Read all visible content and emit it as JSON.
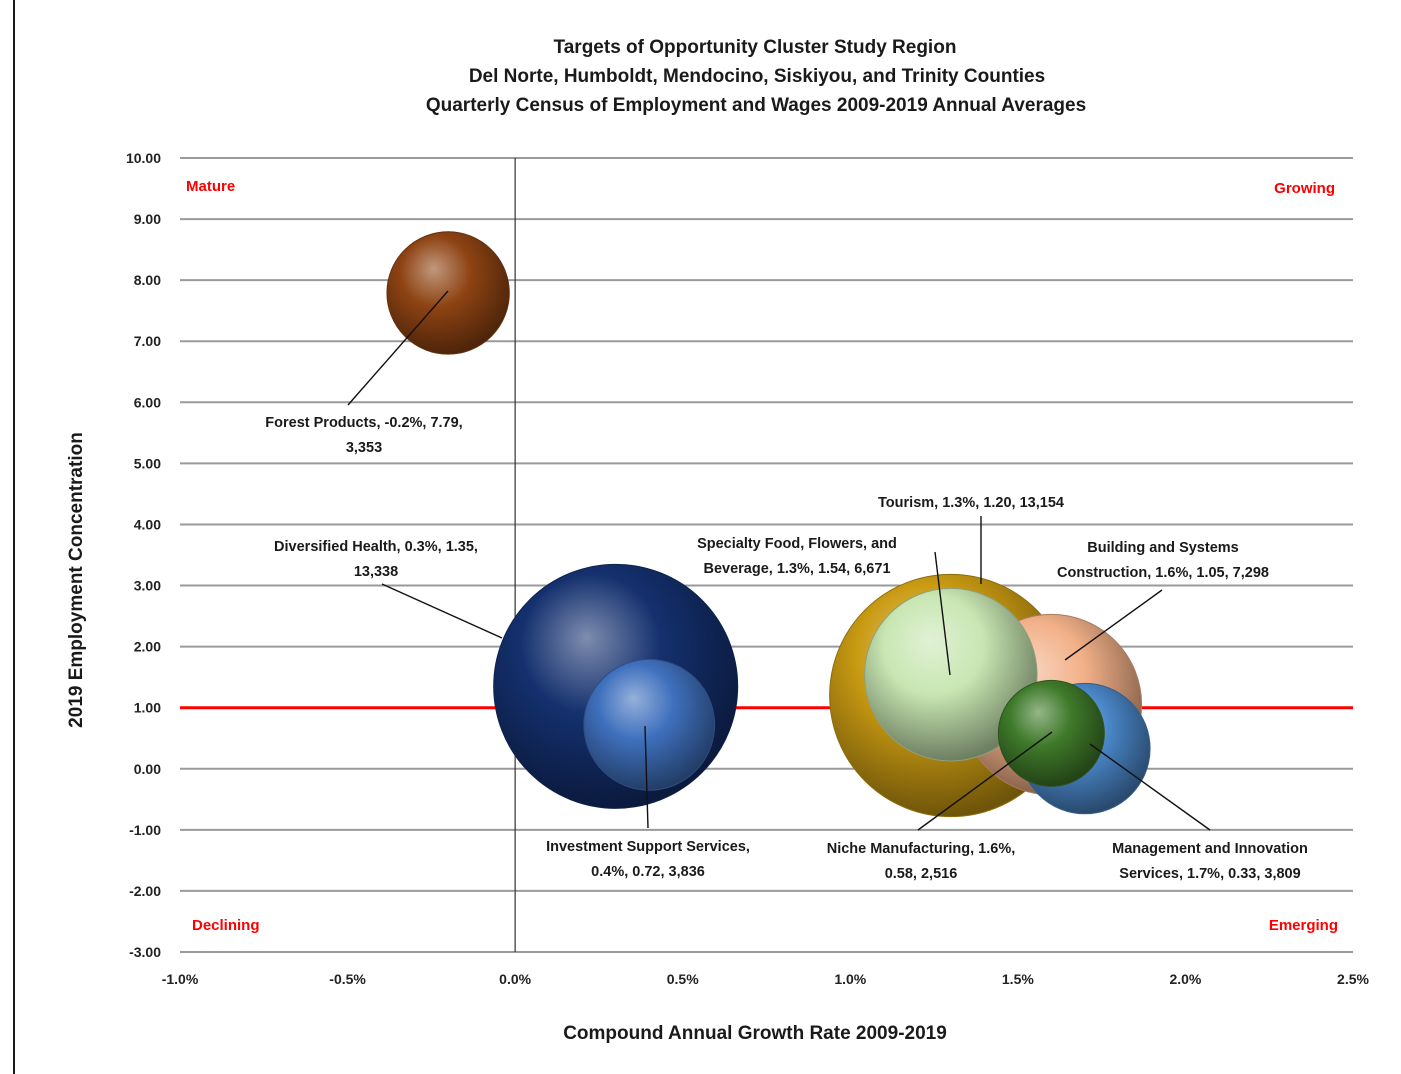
{
  "chart_data": {
    "type": "bubble",
    "title_lines": [
      "Targets of Opportunity Cluster Study Region",
      "Del Norte, Humboldt, Mendocino, Siskiyou, and Trinity Counties",
      "Quarterly Census of Employment and Wages 2009-2019 Annual Averages"
    ],
    "xlabel": "Compound Annual Growth Rate 2009-2019",
    "ylabel": "2019 Employment Concentration",
    "xlim": [
      -1.0,
      2.5
    ],
    "ylim": [
      -3.0,
      10.0
    ],
    "x_ticks": [
      "-1.0%",
      "-0.5%",
      "0.0%",
      "0.5%",
      "1.0%",
      "1.5%",
      "2.0%",
      "2.5%"
    ],
    "y_ticks": [
      "10.00",
      "9.00",
      "8.00",
      "7.00",
      "6.00",
      "5.00",
      "4.00",
      "3.00",
      "2.00",
      "1.00",
      "0.00",
      "-1.00",
      "-2.00",
      "-3.00"
    ],
    "grid": true,
    "reference_line_y": 1.0,
    "reference_line_color": "#ff0000",
    "quadrant_labels": {
      "top_left": "Mature",
      "top_right": "Growing",
      "bottom_left": "Declining",
      "bottom_right": "Emerging"
    },
    "series": [
      {
        "label_lines": [
          "Diversified Health, 0.3%, 1.35,",
          "13,338"
        ],
        "x": 0.3,
        "y": 1.35,
        "size": 13338,
        "color": "#14306e"
      },
      {
        "label_lines": [
          "Tourism, 1.3%, 1.20,  13,154"
        ],
        "x": 1.3,
        "y": 1.2,
        "size": 13154,
        "color": "#c99a12"
      },
      {
        "label_lines": [
          "Building and Systems",
          "Construction, 1.6%, 1.05,  7,298"
        ],
        "x": 1.6,
        "y": 1.05,
        "size": 7298,
        "color": "#f2b088"
      },
      {
        "label_lines": [
          "Specialty Food, Flowers, and",
          "Beverage, 1.3%, 1.54,  6,671"
        ],
        "x": 1.3,
        "y": 1.54,
        "size": 6671,
        "color": "#c8e6b2"
      },
      {
        "label_lines": [
          "Investment Support Services,",
          "0.4%, 0.72,  3,836"
        ],
        "x": 0.4,
        "y": 0.72,
        "size": 3836,
        "color": "#3f70bd"
      },
      {
        "label_lines": [
          "Management and Innovation",
          "Services, 1.7%, 0.33,  3,809"
        ],
        "x": 1.7,
        "y": 0.33,
        "size": 3809,
        "color": "#4a86c8"
      },
      {
        "label_lines": [
          "Forest Products, -0.2%, 7.79,",
          "3,353"
        ],
        "x": -0.2,
        "y": 7.79,
        "size": 3353,
        "color": "#8e4313"
      },
      {
        "label_lines": [
          "Niche Manufacturing, 1.6%,",
          "0.58,  2,516"
        ],
        "x": 1.6,
        "y": 0.58,
        "size": 2516,
        "color": "#3f7a2a"
      }
    ]
  }
}
